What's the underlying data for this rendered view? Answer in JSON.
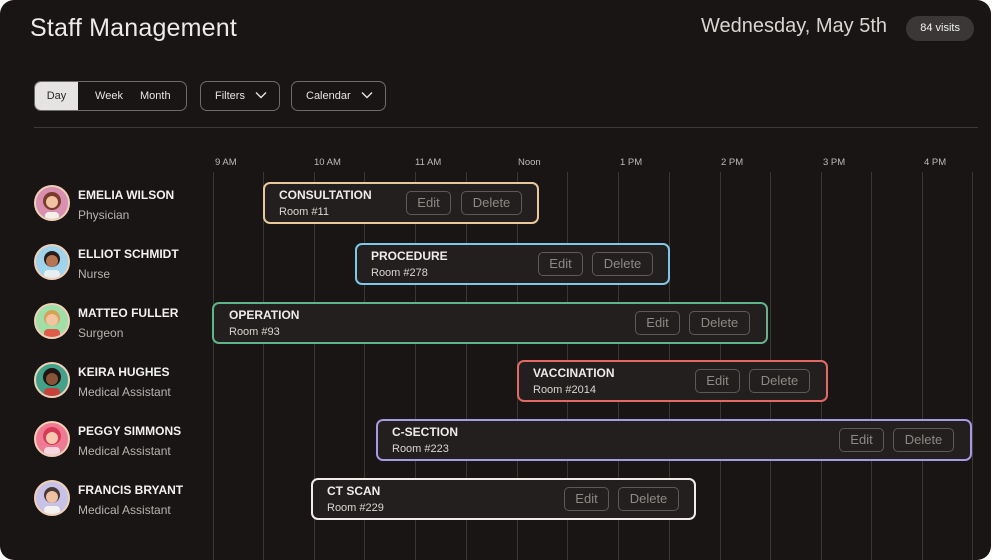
{
  "header": {
    "title": "Staff Management",
    "date": "Wednesday, May 5th",
    "visits_badge": "84 visits"
  },
  "toolbar": {
    "view_options": [
      "Day",
      "Week",
      "Month"
    ],
    "active_view": "Day",
    "filters_label": "Filters",
    "calendar_label": "Calendar"
  },
  "timeline": {
    "hours": [
      "9 AM",
      "10 AM",
      "11 AM",
      "Noon",
      "1 PM",
      "2 PM",
      "3 PM",
      "4 PM"
    ]
  },
  "staff": [
    {
      "name": "EMELIA WILSON",
      "role": "Physician"
    },
    {
      "name": "ELLIOT SCHMIDT",
      "role": "Nurse"
    },
    {
      "name": "MATTEO FULLER",
      "role": "Surgeon"
    },
    {
      "name": "KEIRA HUGHES",
      "role": "Medical Assistant"
    },
    {
      "name": "PEGGY SIMMONS",
      "role": "Medical Assistant"
    },
    {
      "name": "FRANCIS BRYANT",
      "role": "Medical Assistant"
    }
  ],
  "appointments": [
    {
      "title": "CONSULTATION",
      "room": "Room #11",
      "color": "#e9c89a",
      "edit_label": "Edit",
      "delete_label": "Delete"
    },
    {
      "title": "PROCEDURE",
      "room": "Room #278",
      "color": "#7fc7e6",
      "edit_label": "Edit",
      "delete_label": "Delete"
    },
    {
      "title": "OPERATION",
      "room": "Room #93",
      "color": "#5fb58a",
      "edit_label": "Edit",
      "delete_label": "Delete"
    },
    {
      "title": "VACCINATION",
      "room": "Room #2014",
      "color": "#e36a64",
      "edit_label": "Edit",
      "delete_label": "Delete"
    },
    {
      "title": "C-SECTION",
      "room": "Room #223",
      "color": "#a59be3",
      "edit_label": "Edit",
      "delete_label": "Delete"
    },
    {
      "title": "CT SCAN",
      "room": "Room #229",
      "color": "#f1ecea",
      "edit_label": "Edit",
      "delete_label": "Delete"
    }
  ]
}
